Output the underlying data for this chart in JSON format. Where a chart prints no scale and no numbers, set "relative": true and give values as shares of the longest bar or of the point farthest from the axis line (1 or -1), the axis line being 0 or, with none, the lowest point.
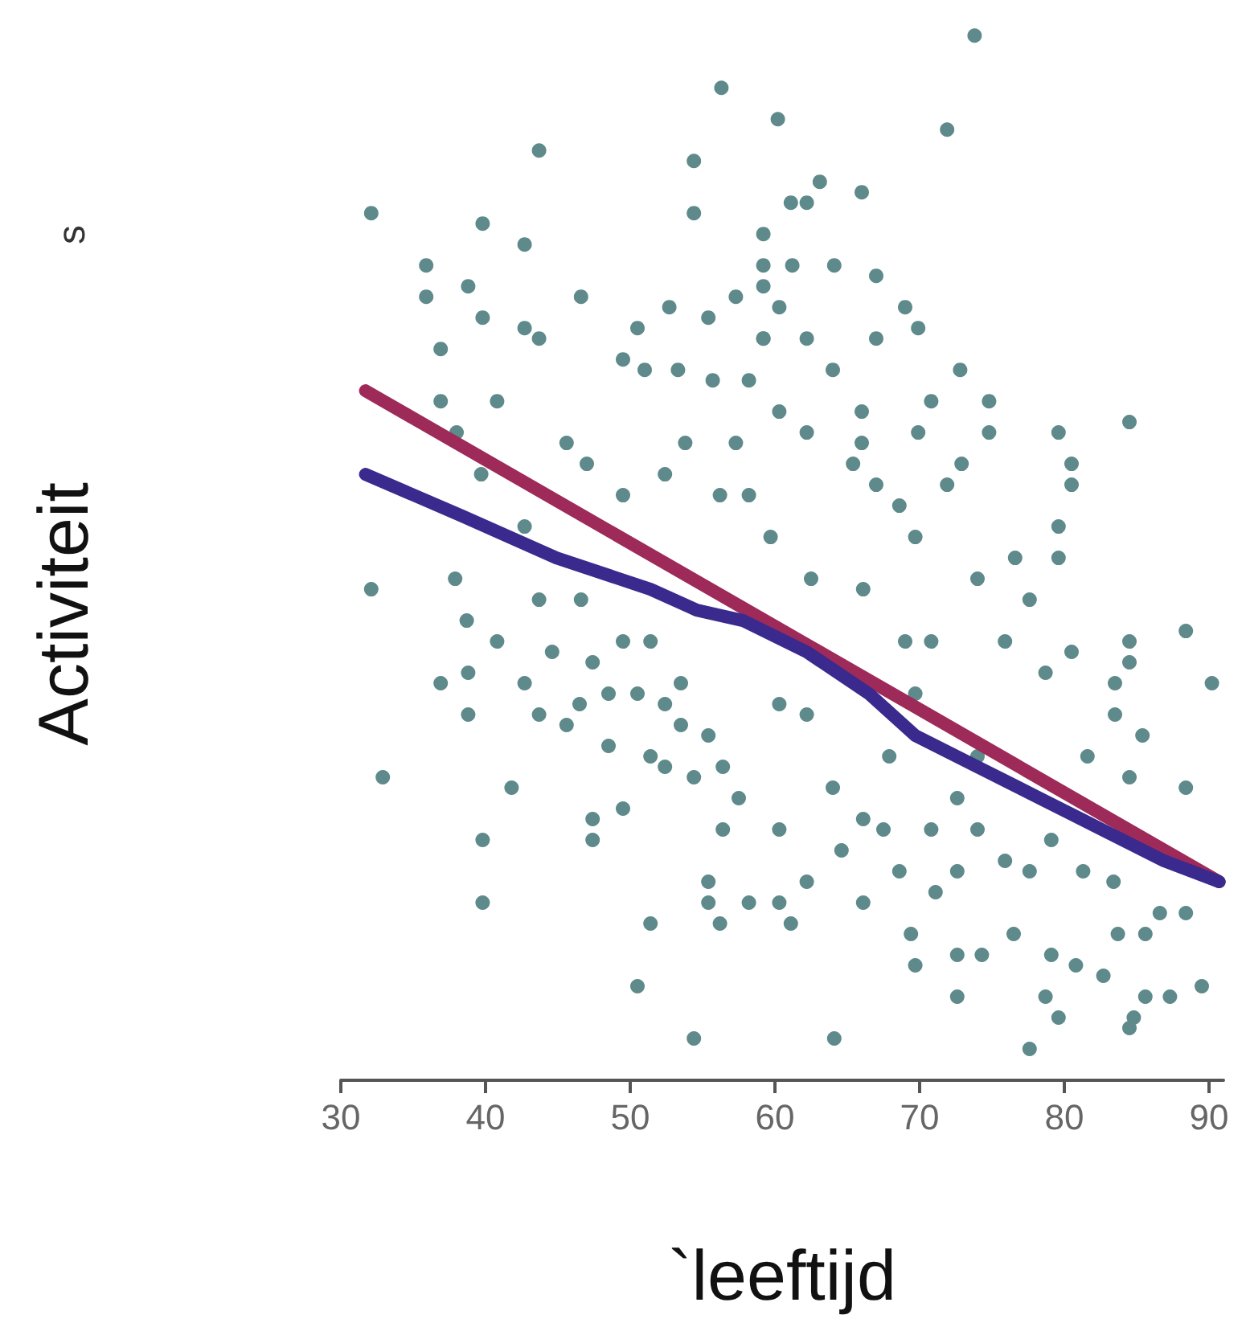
{
  "chart_data": {
    "type": "scatter",
    "xlabel": "`leeftijd",
    "ylabel": "Activiteit",
    "annotations": [
      "s"
    ],
    "relative": true,
    "xlim": [
      30,
      91
    ],
    "xticks": [
      30,
      40,
      50,
      60,
      70,
      80,
      90
    ],
    "grid": false,
    "marker": "circle",
    "series": [
      {
        "color": "#5f8a8b",
        "x": [
          56.3,
          43.7,
          54.4,
          54.4,
          32.1,
          39.8,
          42.7,
          35.9,
          38.8,
          35.9,
          46.6,
          39.8,
          42.7,
          43.7,
          50.5,
          36.9,
          52.7,
          55.4,
          57.3,
          59.2,
          59.2,
          59.2,
          59.2,
          49.5,
          51.0,
          53.3,
          55.7,
          58.2,
          36.9,
          40.8,
          38.0,
          45.6,
          47.0,
          53.8,
          57.3,
          49.5,
          52.4,
          56.2,
          58.2,
          39.7,
          42.7,
          73.8,
          60.2,
          71.9,
          63.1,
          66.0,
          61.1,
          62.2,
          61.2,
          64.1,
          67.0,
          60.3,
          59.2,
          62.2,
          64.0,
          67.0,
          69.0,
          69.9,
          72.8,
          60.3,
          62.2,
          66.0,
          66.0,
          70.8,
          69.9,
          74.8,
          74.8,
          79.6,
          84.5,
          80.5,
          80.5,
          79.6,
          72.9,
          71.9,
          65.4,
          67.0,
          68.6,
          32.1,
          37.9,
          43.7,
          46.6,
          38.7,
          40.8,
          44.6,
          47.4,
          49.5,
          51.4,
          38.8,
          36.9,
          42.7,
          38.8,
          43.7,
          45.6,
          46.5,
          48.5,
          50.5,
          52.4,
          53.5,
          53.5,
          55.4,
          48.5,
          51.4,
          52.4,
          54.4,
          32.9,
          41.8,
          49.5,
          47.4,
          47.4,
          39.8,
          39.8,
          51.4,
          55.4,
          55.4,
          58.2,
          56.2,
          50.5,
          54.4,
          56.4,
          56.4,
          57.5,
          76.6,
          79.6,
          88.4,
          90.2,
          84.5,
          84.5,
          83.5,
          83.5,
          85.4,
          81.6,
          84.5,
          88.4,
          80.5,
          78.7,
          75.9,
          74.0,
          77.6,
          70.8,
          69.0,
          66.1,
          62.5,
          59.7,
          69.7,
          60.3,
          62.2,
          64.0,
          66.1,
          60.3,
          64.6,
          62.2,
          60.3,
          61.1,
          66.1,
          68.6,
          70.8,
          72.6,
          74.0,
          75.9,
          77.6,
          79.1,
          81.3,
          83.4,
          71.1,
          69.4,
          72.6,
          74.3,
          76.5,
          79.1,
          80.8,
          82.7,
          83.7,
          85.6,
          86.6,
          88.4,
          72.6,
          78.7,
          79.6,
          84.8,
          85.6,
          87.3,
          89.5,
          84.5,
          77.6,
          64.1,
          69.7,
          67.9,
          69.7,
          74.0,
          72.6,
          67.5
        ],
        "values": [
          0.95,
          0.89,
          0.88,
          0.83,
          0.83,
          0.82,
          0.8,
          0.78,
          0.76,
          0.75,
          0.75,
          0.73,
          0.72,
          0.71,
          0.72,
          0.7,
          0.74,
          0.73,
          0.75,
          0.81,
          0.78,
          0.76,
          0.71,
          0.69,
          0.68,
          0.68,
          0.67,
          0.67,
          0.65,
          0.65,
          0.62,
          0.61,
          0.59,
          0.61,
          0.61,
          0.56,
          0.58,
          0.56,
          0.56,
          0.58,
          0.53,
          1.0,
          0.92,
          0.91,
          0.86,
          0.85,
          0.84,
          0.84,
          0.78,
          0.78,
          0.77,
          0.74,
          0.71,
          0.71,
          0.68,
          0.71,
          0.74,
          0.72,
          0.68,
          0.64,
          0.62,
          0.64,
          0.61,
          0.65,
          0.62,
          0.65,
          0.62,
          0.62,
          0.63,
          0.59,
          0.57,
          0.53,
          0.59,
          0.57,
          0.59,
          0.57,
          0.55,
          0.47,
          0.48,
          0.46,
          0.46,
          0.44,
          0.42,
          0.41,
          0.4,
          0.42,
          0.42,
          0.39,
          0.38,
          0.38,
          0.35,
          0.35,
          0.34,
          0.36,
          0.37,
          0.37,
          0.36,
          0.38,
          0.34,
          0.33,
          0.32,
          0.31,
          0.3,
          0.29,
          0.29,
          0.28,
          0.26,
          0.25,
          0.23,
          0.23,
          0.17,
          0.15,
          0.19,
          0.17,
          0.17,
          0.15,
          0.09,
          0.04,
          0.3,
          0.24,
          0.27,
          0.5,
          0.5,
          0.43,
          0.38,
          0.42,
          0.4,
          0.38,
          0.35,
          0.33,
          0.31,
          0.29,
          0.28,
          0.41,
          0.39,
          0.42,
          0.48,
          0.46,
          0.42,
          0.42,
          0.47,
          0.48,
          0.52,
          0.52,
          0.36,
          0.35,
          0.28,
          0.25,
          0.24,
          0.22,
          0.19,
          0.17,
          0.15,
          0.17,
          0.2,
          0.24,
          0.27,
          0.24,
          0.21,
          0.2,
          0.23,
          0.2,
          0.19,
          0.18,
          0.14,
          0.12,
          0.12,
          0.14,
          0.12,
          0.11,
          0.1,
          0.14,
          0.14,
          0.16,
          0.16,
          0.08,
          0.08,
          0.06,
          0.06,
          0.08,
          0.08,
          0.09,
          0.05,
          0.03,
          0.04,
          0.11,
          0.31,
          0.37,
          0.31,
          0.2,
          0.24
        ]
      },
      {
        "type": "line",
        "color": "#9e2a5a",
        "marker": "none",
        "line_style": "solid",
        "x": [
          31.7,
          90.7
        ],
        "values": [
          0.66,
          0.19
        ]
      },
      {
        "type": "line",
        "color": "#3a2a8e",
        "marker": "none",
        "line_style": "solid",
        "x": [
          31.7,
          38.4,
          44.9,
          51.4,
          54.6,
          57.8,
          62.2,
          66.5,
          69.7,
          74.0,
          78.3,
          82.6,
          86.9,
          90.7
        ],
        "values": [
          0.58,
          0.54,
          0.5,
          0.47,
          0.45,
          0.44,
          0.41,
          0.37,
          0.33,
          0.3,
          0.27,
          0.24,
          0.21,
          0.19
        ]
      }
    ]
  }
}
